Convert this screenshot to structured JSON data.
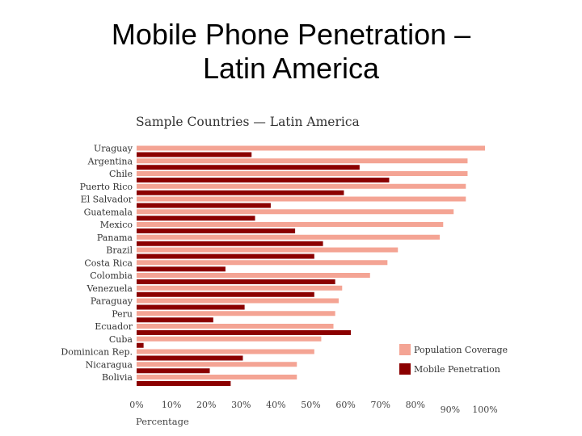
{
  "slide": {
    "title_line1": "Mobile Phone Penetration –",
    "title_line2": "Latin America"
  },
  "chart_data": {
    "type": "bar",
    "orientation": "horizontal",
    "title": "Sample Countries — Latin America",
    "xlabel": "Percentage",
    "xlim": [
      0,
      100
    ],
    "x_ticks": [
      "0%",
      "10%",
      "20%",
      "30%",
      "40%",
      "50%",
      "60%",
      "70%",
      "80%",
      "90%",
      "100%"
    ],
    "categories": [
      "Uraguay",
      "Argentina",
      "Chile",
      "Puerto Rico",
      "El Salvador",
      "Guatemala",
      "Mexico",
      "Panama",
      "Brazil",
      "Costa Rica",
      "Colombia",
      "Venezuela",
      "Paraguay",
      "Peru",
      "Ecuador",
      "Cuba",
      "Dominican Rep.",
      "Nicaragua",
      "Bolivia"
    ],
    "series": [
      {
        "name": "Population Coverage",
        "color": "#f4a494",
        "values": [
          100,
          95,
          95,
          94.5,
          94.5,
          91,
          88,
          87,
          75,
          72,
          67,
          59,
          58,
          57,
          56.5,
          53,
          51,
          46,
          46
        ]
      },
      {
        "name": "Mobile Penetration",
        "color": "#8b0000",
        "values": [
          33,
          64,
          72.5,
          59.5,
          38.5,
          34,
          45.5,
          53.5,
          51,
          25.5,
          57,
          51,
          31,
          22,
          61.5,
          2,
          30.5,
          21,
          27
        ]
      }
    ],
    "legend_position": "bottom-right",
    "grid": false
  }
}
